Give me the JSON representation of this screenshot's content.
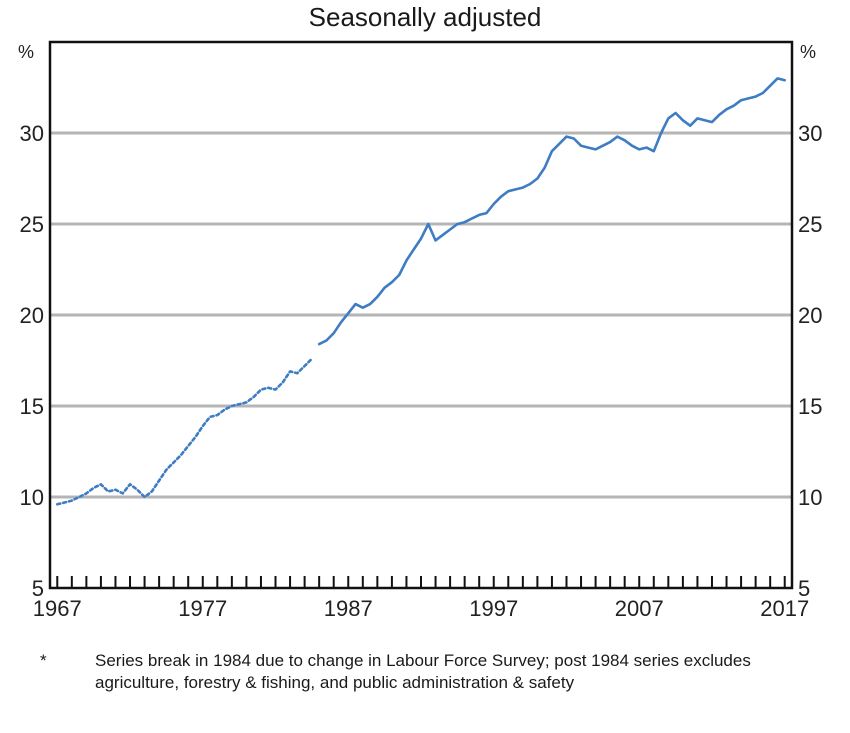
{
  "chart_data": {
    "type": "line",
    "title": "",
    "subtitle": "Seasonally adjusted",
    "y_unit_left": "%",
    "y_unit_right": "%",
    "ylim": [
      5,
      35
    ],
    "xlim": [
      1966.5,
      2017.5
    ],
    "y_ticks": [
      "5",
      "10",
      "15",
      "20",
      "25",
      "30"
    ],
    "x_ticks": [
      {
        "value": 1967,
        "label": "1967"
      },
      {
        "value": 1977,
        "label": "1977"
      },
      {
        "value": 1987,
        "label": "1987"
      },
      {
        "value": 1997,
        "label": "1997"
      },
      {
        "value": 2007,
        "label": "2007"
      },
      {
        "value": 2017,
        "label": "2017"
      }
    ],
    "grid": true,
    "line_color": "#3e7cc3",
    "series": [
      {
        "style": "dotted",
        "points": [
          [
            1967.0,
            9.6
          ],
          [
            1967.5,
            9.7
          ],
          [
            1968.0,
            9.8
          ],
          [
            1968.5,
            10.0
          ],
          [
            1969.0,
            10.2
          ],
          [
            1969.5,
            10.5
          ],
          [
            1970.0,
            10.7
          ],
          [
            1970.5,
            10.3
          ],
          [
            1971.0,
            10.4
          ],
          [
            1971.5,
            10.2
          ],
          [
            1972.0,
            10.7
          ],
          [
            1972.5,
            10.4
          ],
          [
            1973.0,
            10.0
          ],
          [
            1973.5,
            10.3
          ],
          [
            1974.0,
            10.9
          ],
          [
            1974.5,
            11.5
          ],
          [
            1975.0,
            11.9
          ],
          [
            1975.5,
            12.3
          ],
          [
            1976.0,
            12.8
          ],
          [
            1976.5,
            13.3
          ],
          [
            1977.0,
            13.9
          ],
          [
            1977.5,
            14.4
          ],
          [
            1978.0,
            14.5
          ],
          [
            1978.5,
            14.8
          ],
          [
            1979.0,
            15.0
          ],
          [
            1979.5,
            15.1
          ],
          [
            1980.0,
            15.2
          ],
          [
            1980.5,
            15.5
          ],
          [
            1981.0,
            15.9
          ],
          [
            1981.5,
            16.0
          ],
          [
            1982.0,
            15.9
          ],
          [
            1982.5,
            16.3
          ],
          [
            1983.0,
            16.9
          ],
          [
            1983.5,
            16.8
          ],
          [
            1984.0,
            17.2
          ],
          [
            1984.5,
            17.6
          ]
        ]
      },
      {
        "style": "solid",
        "points": [
          [
            1985.0,
            18.4
          ],
          [
            1985.5,
            18.6
          ],
          [
            1986.0,
            19.0
          ],
          [
            1986.5,
            19.6
          ],
          [
            1987.0,
            20.1
          ],
          [
            1987.5,
            20.6
          ],
          [
            1988.0,
            20.4
          ],
          [
            1988.5,
            20.6
          ],
          [
            1989.0,
            21.0
          ],
          [
            1989.5,
            21.5
          ],
          [
            1990.0,
            21.8
          ],
          [
            1990.5,
            22.2
          ],
          [
            1991.0,
            23.0
          ],
          [
            1991.5,
            23.6
          ],
          [
            1992.0,
            24.2
          ],
          [
            1992.5,
            25.0
          ],
          [
            1993.0,
            24.1
          ],
          [
            1993.5,
            24.4
          ],
          [
            1994.0,
            24.7
          ],
          [
            1994.5,
            25.0
          ],
          [
            1995.0,
            25.1
          ],
          [
            1995.5,
            25.3
          ],
          [
            1996.0,
            25.5
          ],
          [
            1996.5,
            25.6
          ],
          [
            1997.0,
            26.1
          ],
          [
            1997.5,
            26.5
          ],
          [
            1998.0,
            26.8
          ],
          [
            1998.5,
            26.9
          ],
          [
            1999.0,
            27.0
          ],
          [
            1999.5,
            27.2
          ],
          [
            2000.0,
            27.5
          ],
          [
            2000.5,
            28.1
          ],
          [
            2001.0,
            29.0
          ],
          [
            2001.5,
            29.4
          ],
          [
            2002.0,
            29.8
          ],
          [
            2002.5,
            29.7
          ],
          [
            2003.0,
            29.3
          ],
          [
            2003.5,
            29.2
          ],
          [
            2004.0,
            29.1
          ],
          [
            2004.5,
            29.3
          ],
          [
            2005.0,
            29.5
          ],
          [
            2005.5,
            29.8
          ],
          [
            2006.0,
            29.6
          ],
          [
            2006.5,
            29.3
          ],
          [
            2007.0,
            29.1
          ],
          [
            2007.5,
            29.2
          ],
          [
            2008.0,
            29.0
          ],
          [
            2008.5,
            30.0
          ],
          [
            2009.0,
            30.8
          ],
          [
            2009.5,
            31.1
          ],
          [
            2010.0,
            30.7
          ],
          [
            2010.5,
            30.4
          ],
          [
            2011.0,
            30.8
          ],
          [
            2011.5,
            30.7
          ],
          [
            2012.0,
            30.6
          ],
          [
            2012.5,
            31.0
          ],
          [
            2013.0,
            31.3
          ],
          [
            2013.5,
            31.5
          ],
          [
            2014.0,
            31.8
          ],
          [
            2014.5,
            31.9
          ],
          [
            2015.0,
            32.0
          ],
          [
            2015.5,
            32.2
          ],
          [
            2016.0,
            32.6
          ],
          [
            2016.5,
            33.0
          ],
          [
            2017.0,
            32.9
          ]
        ]
      }
    ]
  },
  "footnote": {
    "marker": "*",
    "text": "Series break in 1984 due to change in Labour Force Survey; post 1984 series excludes agriculture, forestry & fishing, and public administration & safety"
  }
}
